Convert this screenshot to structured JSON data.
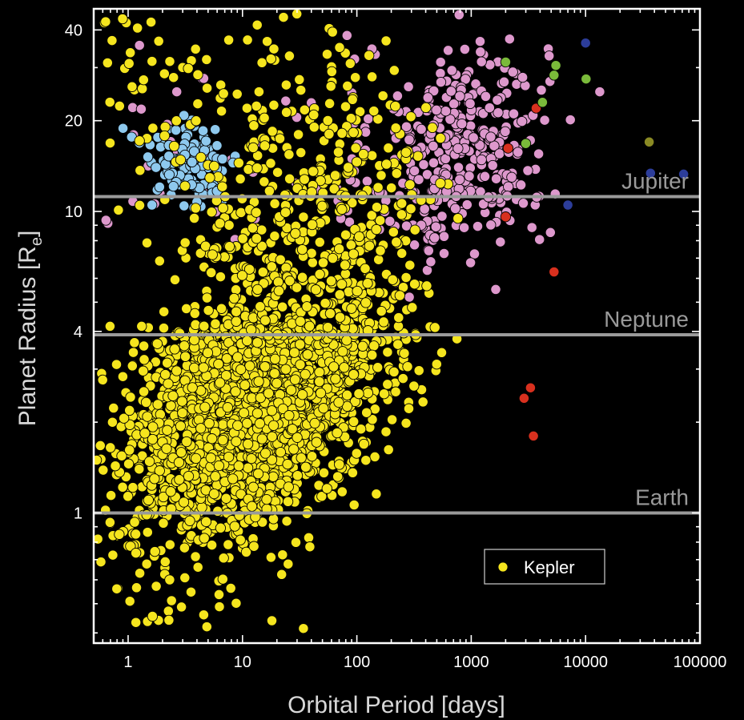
{
  "chart_data": {
    "type": "scatter",
    "title": "",
    "xlabel": "Orbital Period [days]",
    "ylabel_main": "Planet Radius [R",
    "ylabel_sub": "e",
    "ylabel_close": "]",
    "x_scale": "log",
    "y_scale": "log",
    "xlim": [
      0.5,
      100000
    ],
    "ylim": [
      0.37,
      47
    ],
    "x_ticks": [
      {
        "value": 1,
        "label": "1"
      },
      {
        "value": 10,
        "label": "10"
      },
      {
        "value": 100,
        "label": "100"
      },
      {
        "value": 1000,
        "label": "1000"
      },
      {
        "value": 10000,
        "label": "10000"
      },
      {
        "value": 100000,
        "label": "100000"
      }
    ],
    "y_ticks": [
      {
        "value": 1,
        "label": "1"
      },
      {
        "value": 4,
        "label": "4"
      },
      {
        "value": 10,
        "label": "10"
      },
      {
        "value": 20,
        "label": "20"
      },
      {
        "value": 40,
        "label": "40"
      }
    ],
    "reference_lines": [
      {
        "name": "Jupiter",
        "y": 11.2
      },
      {
        "name": "Neptune",
        "y": 3.9
      },
      {
        "name": "Earth",
        "y": 1.0
      }
    ],
    "colors": {
      "kepler": "#f5e51e",
      "pink": "#dd98cc",
      "lightblue": "#8ec9ee",
      "red": "#d8301e",
      "green": "#7aba3a",
      "darkblue": "#2c3d9a",
      "olive": "#8a8a24",
      "reference_line": "#9a9a9a",
      "axes": "#ffffff"
    },
    "legend": {
      "position": "bottom-right",
      "entries": [
        {
          "label": "Kepler",
          "color": "#f5e51e"
        }
      ]
    },
    "grid": false,
    "series": [
      {
        "name": "Kepler",
        "color": "#f5e51e",
        "distribution": "dense cloud, periods ~0.5–600 d, radii ~0.4–45 R_e, densest 2–60 d / 1–4 R_e"
      },
      {
        "color": "#dd98cc",
        "distribution": "periods ~100–20000 d, radii ~4–45 R_e"
      },
      {
        "color": "#8ec9ee",
        "distribution": "periods ~0.8–8 d, radii ~10–20 R_e"
      },
      {
        "color": "#d8301e",
        "points": [
          [
            3300,
            2.6
          ],
          [
            2900,
            2.4
          ],
          [
            3500,
            1.8
          ],
          [
            5300,
            6.3
          ],
          [
            2000,
            9.6
          ],
          [
            2100,
            16.2
          ],
          [
            3700,
            22.0
          ]
        ]
      },
      {
        "color": "#7aba3a",
        "points": [
          [
            5500,
            30.5
          ],
          [
            10100,
            27.5
          ],
          [
            4200,
            23.0
          ],
          [
            3000,
            16.8
          ],
          [
            2000,
            31.3
          ],
          [
            5300,
            28.3
          ]
        ]
      },
      {
        "color": "#2c3d9a",
        "points": [
          [
            10000,
            36.2
          ],
          [
            7000,
            10.5
          ],
          [
            37000,
            13.4
          ],
          [
            72000,
            13.3
          ]
        ]
      },
      {
        "color": "#8a8a24",
        "points": [
          [
            36000,
            17.0
          ]
        ]
      }
    ]
  }
}
